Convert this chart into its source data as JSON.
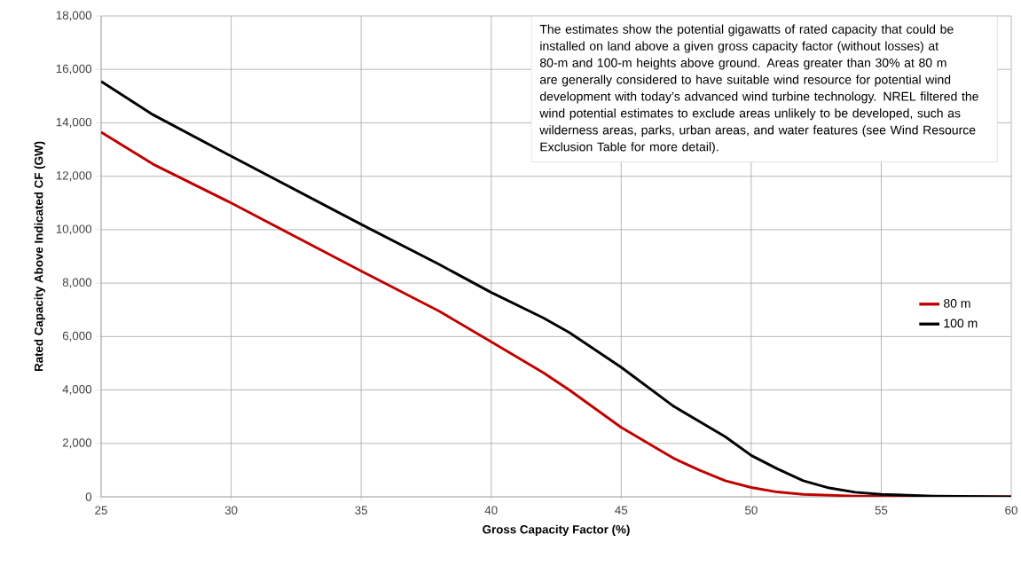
{
  "chart_data": {
    "type": "line",
    "xlabel": "Gross Capacity Factor (%)",
    "ylabel": "Rated Capacity Above Indicated CF (GW)",
    "xlim": [
      25,
      60
    ],
    "xticks": [
      25,
      30,
      35,
      40,
      45,
      50,
      55,
      60
    ],
    "ylim": [
      0,
      18000
    ],
    "yticks": [
      {
        "value": 0,
        "label": "0"
      },
      {
        "value": 2000,
        "label": "2,000"
      },
      {
        "value": 4000,
        "label": "4,000"
      },
      {
        "value": 6000,
        "label": "6,000"
      },
      {
        "value": 8000,
        "label": "8,000"
      },
      {
        "value": 10000,
        "label": "10,000"
      },
      {
        "value": 12000,
        "label": "12,000"
      },
      {
        "value": 14000,
        "label": "14,000"
      },
      {
        "value": 16000,
        "label": "16,000"
      },
      {
        "value": 18000,
        "label": "18,000"
      }
    ],
    "grid": true,
    "legend": "right",
    "line_style": "solid",
    "marker": "none",
    "series": [
      {
        "name": "80 m",
        "color": "#c00000",
        "x": [
          25,
          27,
          30,
          35,
          38,
          40,
          42,
          43,
          45,
          47,
          48,
          49,
          50,
          51,
          52,
          54,
          56,
          60
        ],
        "values": [
          13650,
          12450,
          11000,
          8450,
          6950,
          5800,
          4650,
          4000,
          2600,
          1450,
          1000,
          600,
          350,
          180,
          90,
          30,
          10,
          0
        ]
      },
      {
        "name": "100 m",
        "color": "#000000",
        "x": [
          25,
          27,
          30,
          35,
          38,
          40,
          42,
          43,
          45,
          47,
          49,
          50,
          51,
          52,
          53,
          54,
          55,
          57,
          60
        ],
        "values": [
          15550,
          14300,
          12750,
          10200,
          8700,
          7650,
          6700,
          6150,
          4850,
          3400,
          2250,
          1550,
          1050,
          600,
          330,
          170,
          90,
          30,
          0
        ]
      }
    ],
    "annotations": [
      "The estimates show the potential gigawatts of rated capacity that could be installed on land above a given gross capacity factor (without losses) at 80-m and 100-m heights above ground. Areas greater than 30% at 80 m are generally considered to have suitable wind resource for potential wind development with today’s advanced wind turbine technology. NREL filtered the wind potential estimates to exclude areas unlikely to be developed, such as wilderness areas, parks, urban areas, and water features (see Wind Resource Exclusion Table for more detail)."
    ]
  }
}
